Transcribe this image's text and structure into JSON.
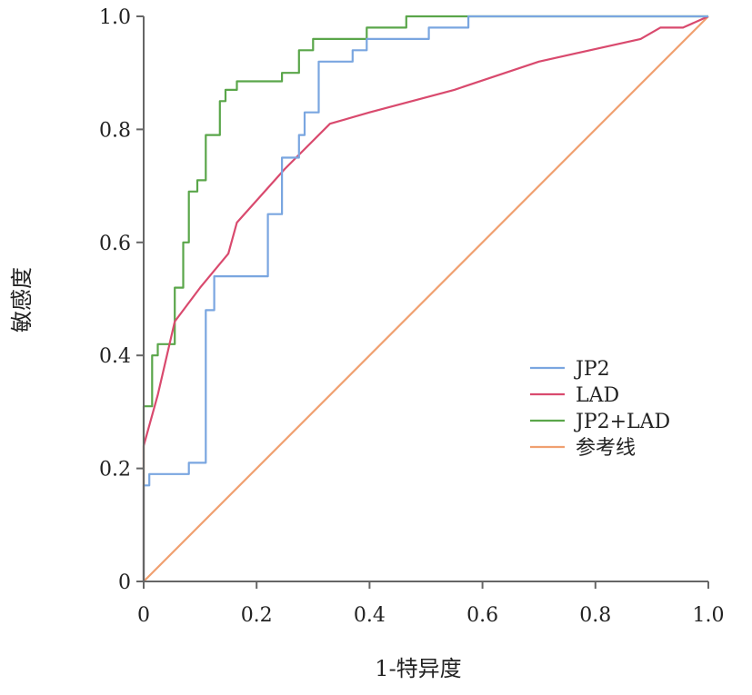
{
  "chart_data": {
    "type": "line",
    "title": "",
    "xlabel": "1-特异度",
    "ylabel": "敏感度",
    "xlim": [
      0,
      1
    ],
    "ylim": [
      0,
      1
    ],
    "x_ticks": [
      "0",
      "0.2",
      "0.4",
      "0.6",
      "0.8",
      "1.0"
    ],
    "y_ticks": [
      "0",
      "0.2",
      "0.4",
      "0.6",
      "0.8",
      "1.0"
    ],
    "grid": false,
    "legend_position": "right",
    "series": [
      {
        "name": "JP2",
        "color": "#7aa6e0",
        "points": [
          [
            0,
            0
          ],
          [
            0,
            0.17
          ],
          [
            0.01,
            0.17
          ],
          [
            0.01,
            0.19
          ],
          [
            0.08,
            0.19
          ],
          [
            0.08,
            0.21
          ],
          [
            0.11,
            0.21
          ],
          [
            0.11,
            0.48
          ],
          [
            0.125,
            0.48
          ],
          [
            0.125,
            0.54
          ],
          [
            0.22,
            0.54
          ],
          [
            0.22,
            0.65
          ],
          [
            0.245,
            0.65
          ],
          [
            0.245,
            0.75
          ],
          [
            0.275,
            0.75
          ],
          [
            0.275,
            0.79
          ],
          [
            0.285,
            0.79
          ],
          [
            0.285,
            0.83
          ],
          [
            0.31,
            0.83
          ],
          [
            0.31,
            0.92
          ],
          [
            0.37,
            0.92
          ],
          [
            0.37,
            0.94
          ],
          [
            0.395,
            0.94
          ],
          [
            0.395,
            0.96
          ],
          [
            0.505,
            0.96
          ],
          [
            0.505,
            0.98
          ],
          [
            0.575,
            0.98
          ],
          [
            0.575,
            1.0
          ],
          [
            1.0,
            1.0
          ]
        ]
      },
      {
        "name": "LAD",
        "color": "#d94a6e",
        "points": [
          [
            0,
            0
          ],
          [
            0,
            0.24
          ],
          [
            0.025,
            0.33
          ],
          [
            0.055,
            0.46
          ],
          [
            0.1,
            0.52
          ],
          [
            0.15,
            0.58
          ],
          [
            0.165,
            0.635
          ],
          [
            0.25,
            0.73
          ],
          [
            0.33,
            0.81
          ],
          [
            0.4,
            0.83
          ],
          [
            0.55,
            0.87
          ],
          [
            0.7,
            0.92
          ],
          [
            0.88,
            0.96
          ],
          [
            0.915,
            0.98
          ],
          [
            0.955,
            0.98
          ],
          [
            1.0,
            1.0
          ]
        ]
      },
      {
        "name": "JP2+LAD",
        "color": "#5aa64a",
        "points": [
          [
            0,
            0
          ],
          [
            0,
            0.31
          ],
          [
            0.015,
            0.31
          ],
          [
            0.015,
            0.4
          ],
          [
            0.025,
            0.4
          ],
          [
            0.025,
            0.42
          ],
          [
            0.055,
            0.42
          ],
          [
            0.055,
            0.52
          ],
          [
            0.07,
            0.52
          ],
          [
            0.07,
            0.6
          ],
          [
            0.08,
            0.6
          ],
          [
            0.08,
            0.69
          ],
          [
            0.095,
            0.69
          ],
          [
            0.095,
            0.71
          ],
          [
            0.11,
            0.71
          ],
          [
            0.11,
            0.79
          ],
          [
            0.135,
            0.79
          ],
          [
            0.135,
            0.85
          ],
          [
            0.145,
            0.85
          ],
          [
            0.145,
            0.87
          ],
          [
            0.165,
            0.87
          ],
          [
            0.165,
            0.885
          ],
          [
            0.245,
            0.885
          ],
          [
            0.245,
            0.9
          ],
          [
            0.275,
            0.9
          ],
          [
            0.275,
            0.94
          ],
          [
            0.3,
            0.94
          ],
          [
            0.3,
            0.96
          ],
          [
            0.395,
            0.96
          ],
          [
            0.395,
            0.98
          ],
          [
            0.465,
            0.98
          ],
          [
            0.465,
            1.0
          ],
          [
            1.0,
            1.0
          ]
        ]
      },
      {
        "name": "参考线",
        "color": "#f0a070",
        "points": [
          [
            0,
            0
          ],
          [
            1,
            1
          ]
        ]
      }
    ]
  }
}
